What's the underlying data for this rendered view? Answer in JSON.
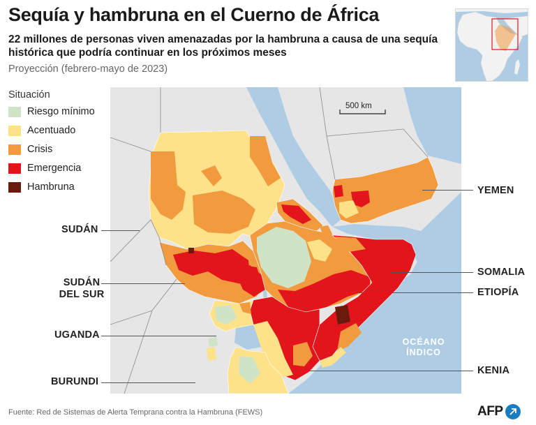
{
  "title": "Sequía y hambruna en el Cuerno de África",
  "subtitle": "22 millones de personas viven amenazadas por la hambruna a causa de una sequía histórica que podría continuar en los próximos meses",
  "projection": "Proyección (febrero-mayo de 2023)",
  "legend": {
    "title": "Situación",
    "items": [
      {
        "label": "Riesgo mínimo",
        "color": "#cfe3c6"
      },
      {
        "label": "Acentuado",
        "color": "#fde28a"
      },
      {
        "label": "Crisis",
        "color": "#f19a3e"
      },
      {
        "label": "Emergencia",
        "color": "#e2141c"
      },
      {
        "label": "Hambruna",
        "color": "#6b1a0e"
      }
    ]
  },
  "countries": {
    "sudan": "SUDÁN",
    "south_sudan_1": "SUDÁN",
    "south_sudan_2": "DEL SUR",
    "uganda": "UGANDA",
    "burundi": "BURUNDI",
    "yemen": "YEMEN",
    "somalia": "SOMALIA",
    "ethiopia": "ETIOPÍA",
    "kenya": "KENIA"
  },
  "ocean": {
    "line1": "OCÉANO",
    "line2": "ÍNDICO"
  },
  "scale": "500 km",
  "source": "Fuente: Red de Sistemas de Alerta Temprana contra la Hambruna (FEWS)",
  "logo": "AFP",
  "colors": {
    "sea": "#aecde4",
    "land_other": "#e6e6e6",
    "accent_box": "#e2141c"
  }
}
